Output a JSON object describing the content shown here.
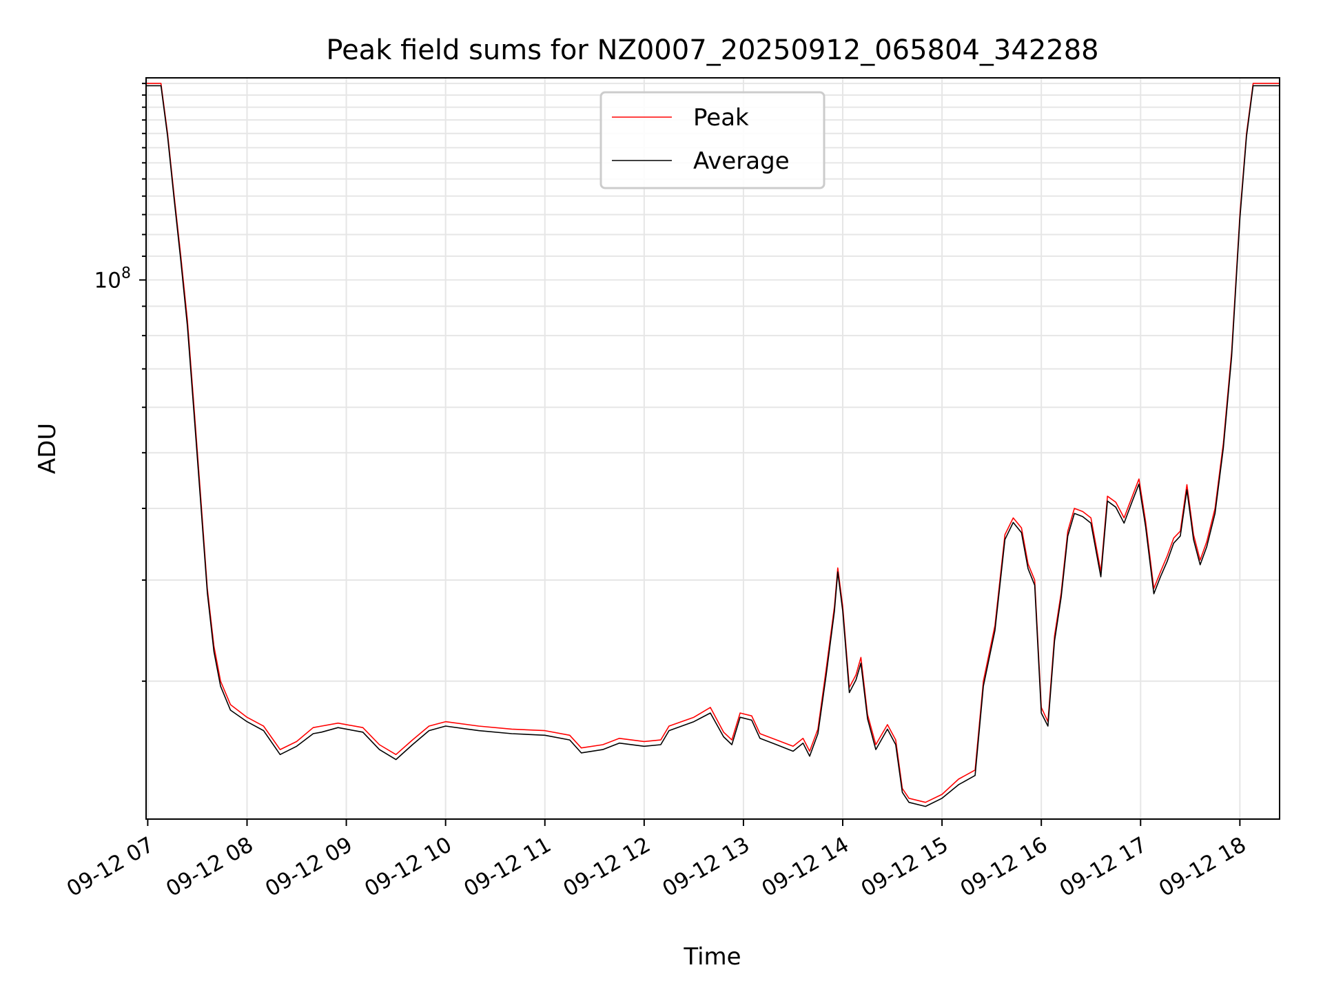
{
  "chart_data": {
    "type": "line",
    "title": "Peak field sums for NZ0007_20250912_065804_342288",
    "xlabel": "Time",
    "ylabel": "ADU",
    "yscale": "log",
    "ylim": [
      11500000,
      225000000
    ],
    "xlim": [
      "09-12 06:59",
      "09-12 18:24"
    ],
    "x_ticks": [
      "09-12 07",
      "09-12 08",
      "09-12 09",
      "09-12 10",
      "09-12 11",
      "09-12 12",
      "09-12 13",
      "09-12 14",
      "09-12 15",
      "09-12 16",
      "09-12 17",
      "09-12 18"
    ],
    "y_tick_labels": [
      {
        "value": 100000000,
        "base": "10",
        "exponent": "8"
      }
    ],
    "grid": true,
    "legend_position": "upper center",
    "colors": {
      "peak": "#ff0000",
      "average": "#000000"
    },
    "series": [
      {
        "name": "Peak",
        "color": "#ff0000",
        "points": [
          [
            "09-12 06:59",
            220000000
          ],
          [
            "09-12 07:08",
            220000000
          ],
          [
            "09-12 07:12",
            180000000
          ],
          [
            "09-12 07:16",
            140000000
          ],
          [
            "09-12 07:20",
            110000000
          ],
          [
            "09-12 07:24",
            85000000
          ],
          [
            "09-12 07:28",
            60000000
          ],
          [
            "09-12 07:32",
            42000000
          ],
          [
            "09-12 07:36",
            29000000
          ],
          [
            "09-12 07:40",
            23000000
          ],
          [
            "09-12 07:44",
            20000000
          ],
          [
            "09-12 07:50",
            18200000
          ],
          [
            "09-12 08:00",
            17300000
          ],
          [
            "09-12 08:10",
            16700000
          ],
          [
            "09-12 08:20",
            15200000
          ],
          [
            "09-12 08:30",
            15700000
          ],
          [
            "09-12 08:40",
            16600000
          ],
          [
            "09-12 08:45",
            16700000
          ],
          [
            "09-12 08:55",
            16900000
          ],
          [
            "09-12 09:10",
            16600000
          ],
          [
            "09-12 09:20",
            15500000
          ],
          [
            "09-12 09:30",
            14900000
          ],
          [
            "09-12 09:40",
            15800000
          ],
          [
            "09-12 09:50",
            16700000
          ],
          [
            "09-12 10:00",
            17000000
          ],
          [
            "09-12 10:20",
            16700000
          ],
          [
            "09-12 10:40",
            16500000
          ],
          [
            "09-12 11:00",
            16400000
          ],
          [
            "09-12 11:15",
            16100000
          ],
          [
            "09-12 11:22",
            15300000
          ],
          [
            "09-12 11:35",
            15500000
          ],
          [
            "09-12 11:45",
            15900000
          ],
          [
            "09-12 12:00",
            15700000
          ],
          [
            "09-12 12:10",
            15800000
          ],
          [
            "09-12 12:15",
            16700000
          ],
          [
            "09-12 12:30",
            17300000
          ],
          [
            "09-12 12:40",
            18000000
          ],
          [
            "09-12 12:48",
            16300000
          ],
          [
            "09-12 12:53",
            15800000
          ],
          [
            "09-12 12:58",
            17600000
          ],
          [
            "09-12 13:05",
            17400000
          ],
          [
            "09-12 13:10",
            16200000
          ],
          [
            "09-12 13:20",
            15800000
          ],
          [
            "09-12 13:30",
            15400000
          ],
          [
            "09-12 13:36",
            15900000
          ],
          [
            "09-12 13:40",
            15100000
          ],
          [
            "09-12 13:45",
            16500000
          ],
          [
            "09-12 13:50",
            21000000
          ],
          [
            "09-12 13:55",
            27000000
          ],
          [
            "09-12 13:57",
            31500000
          ],
          [
            "09-12 14:00",
            27000000
          ],
          [
            "09-12 14:04",
            19500000
          ],
          [
            "09-12 14:08",
            20500000
          ],
          [
            "09-12 14:11",
            22000000
          ],
          [
            "09-12 14:15",
            17500000
          ],
          [
            "09-12 14:20",
            15500000
          ],
          [
            "09-12 14:27",
            16800000
          ],
          [
            "09-12 14:32",
            15800000
          ],
          [
            "09-12 14:36",
            13000000
          ],
          [
            "09-12 14:40",
            12500000
          ],
          [
            "09-12 14:50",
            12300000
          ],
          [
            "09-12 15:00",
            12700000
          ],
          [
            "09-12 15:10",
            13500000
          ],
          [
            "09-12 15:20",
            14000000
          ],
          [
            "09-12 15:25",
            20000000
          ],
          [
            "09-12 15:32",
            25000000
          ],
          [
            "09-12 15:38",
            36000000
          ],
          [
            "09-12 15:43",
            38500000
          ],
          [
            "09-12 15:48",
            37000000
          ],
          [
            "09-12 15:52",
            32000000
          ],
          [
            "09-12 15:56",
            30000000
          ],
          [
            "09-12 16:00",
            18000000
          ],
          [
            "09-12 16:04",
            17000000
          ],
          [
            "09-12 16:08",
            24000000
          ],
          [
            "09-12 16:12",
            28500000
          ],
          [
            "09-12 16:16",
            36500000
          ],
          [
            "09-12 16:20",
            40000000
          ],
          [
            "09-12 16:25",
            39500000
          ],
          [
            "09-12 16:30",
            38500000
          ],
          [
            "09-12 16:36",
            31000000
          ],
          [
            "09-12 16:40",
            42000000
          ],
          [
            "09-12 16:45",
            41000000
          ],
          [
            "09-12 16:50",
            38500000
          ],
          [
            "09-12 16:55",
            42000000
          ],
          [
            "09-12 16:59",
            45000000
          ],
          [
            "09-12 17:03",
            38000000
          ],
          [
            "09-12 17:08",
            29000000
          ],
          [
            "09-12 17:12",
            31000000
          ],
          [
            "09-12 17:16",
            33000000
          ],
          [
            "09-12 17:20",
            35500000
          ],
          [
            "09-12 17:24",
            36500000
          ],
          [
            "09-12 17:28",
            44000000
          ],
          [
            "09-12 17:32",
            36000000
          ],
          [
            "09-12 17:36",
            32500000
          ],
          [
            "09-12 17:40",
            35000000
          ],
          [
            "09-12 17:45",
            40000000
          ],
          [
            "09-12 17:50",
            52000000
          ],
          [
            "09-12 17:55",
            75000000
          ],
          [
            "09-12 18:00",
            130000000
          ],
          [
            "09-12 18:04",
            180000000
          ],
          [
            "09-12 18:08",
            220000000
          ],
          [
            "09-12 18:24",
            220000000
          ]
        ]
      },
      {
        "name": "Average",
        "color": "#000000",
        "points": [
          [
            "09-12 06:59",
            218000000
          ],
          [
            "09-12 07:08",
            218000000
          ],
          [
            "09-12 07:12",
            178000000
          ],
          [
            "09-12 07:16",
            138000000
          ],
          [
            "09-12 07:20",
            108000000
          ],
          [
            "09-12 07:24",
            83000000
          ],
          [
            "09-12 07:28",
            58500000
          ],
          [
            "09-12 07:32",
            41000000
          ],
          [
            "09-12 07:36",
            28500000
          ],
          [
            "09-12 07:40",
            22500000
          ],
          [
            "09-12 07:44",
            19600000
          ],
          [
            "09-12 07:50",
            17800000
          ],
          [
            "09-12 08:00",
            17000000
          ],
          [
            "09-12 08:10",
            16400000
          ],
          [
            "09-12 08:20",
            14900000
          ],
          [
            "09-12 08:30",
            15400000
          ],
          [
            "09-12 08:40",
            16200000
          ],
          [
            "09-12 08:45",
            16300000
          ],
          [
            "09-12 08:55",
            16600000
          ],
          [
            "09-12 09:10",
            16300000
          ],
          [
            "09-12 09:20",
            15200000
          ],
          [
            "09-12 09:30",
            14600000
          ],
          [
            "09-12 09:40",
            15500000
          ],
          [
            "09-12 09:50",
            16400000
          ],
          [
            "09-12 10:00",
            16700000
          ],
          [
            "09-12 10:20",
            16400000
          ],
          [
            "09-12 10:40",
            16200000
          ],
          [
            "09-12 11:00",
            16100000
          ],
          [
            "09-12 11:15",
            15800000
          ],
          [
            "09-12 11:22",
            15000000
          ],
          [
            "09-12 11:35",
            15200000
          ],
          [
            "09-12 11:45",
            15600000
          ],
          [
            "09-12 12:00",
            15400000
          ],
          [
            "09-12 12:10",
            15500000
          ],
          [
            "09-12 12:15",
            16400000
          ],
          [
            "09-12 12:30",
            17000000
          ],
          [
            "09-12 12:40",
            17600000
          ],
          [
            "09-12 12:48",
            16000000
          ],
          [
            "09-12 12:53",
            15500000
          ],
          [
            "09-12 12:58",
            17300000
          ],
          [
            "09-12 13:05",
            17100000
          ],
          [
            "09-12 13:10",
            15900000
          ],
          [
            "09-12 13:20",
            15500000
          ],
          [
            "09-12 13:30",
            15100000
          ],
          [
            "09-12 13:36",
            15600000
          ],
          [
            "09-12 13:40",
            14800000
          ],
          [
            "09-12 13:45",
            16200000
          ],
          [
            "09-12 13:50",
            20500000
          ],
          [
            "09-12 13:55",
            26500000
          ],
          [
            "09-12 13:57",
            31000000
          ],
          [
            "09-12 14:00",
            26500000
          ],
          [
            "09-12 14:04",
            19100000
          ],
          [
            "09-12 14:08",
            20100000
          ],
          [
            "09-12 14:11",
            21500000
          ],
          [
            "09-12 14:15",
            17200000
          ],
          [
            "09-12 14:20",
            15200000
          ],
          [
            "09-12 14:27",
            16500000
          ],
          [
            "09-12 14:32",
            15500000
          ],
          [
            "09-12 14:36",
            12800000
          ],
          [
            "09-12 14:40",
            12300000
          ],
          [
            "09-12 14:50",
            12100000
          ],
          [
            "09-12 15:00",
            12500000
          ],
          [
            "09-12 15:10",
            13200000
          ],
          [
            "09-12 15:20",
            13700000
          ],
          [
            "09-12 15:25",
            19600000
          ],
          [
            "09-12 15:32",
            24500000
          ],
          [
            "09-12 15:38",
            35300000
          ],
          [
            "09-12 15:43",
            37800000
          ],
          [
            "09-12 15:48",
            36300000
          ],
          [
            "09-12 15:52",
            31400000
          ],
          [
            "09-12 15:56",
            29400000
          ],
          [
            "09-12 16:00",
            17600000
          ],
          [
            "09-12 16:04",
            16700000
          ],
          [
            "09-12 16:08",
            23500000
          ],
          [
            "09-12 16:12",
            28000000
          ],
          [
            "09-12 16:16",
            35800000
          ],
          [
            "09-12 16:20",
            39200000
          ],
          [
            "09-12 16:25",
            38700000
          ],
          [
            "09-12 16:30",
            37700000
          ],
          [
            "09-12 16:36",
            30400000
          ],
          [
            "09-12 16:40",
            41200000
          ],
          [
            "09-12 16:45",
            40200000
          ],
          [
            "09-12 16:50",
            37700000
          ],
          [
            "09-12 16:55",
            41200000
          ],
          [
            "09-12 16:59",
            44100000
          ],
          [
            "09-12 17:03",
            37200000
          ],
          [
            "09-12 17:08",
            28400000
          ],
          [
            "09-12 17:12",
            30400000
          ],
          [
            "09-12 17:16",
            32300000
          ],
          [
            "09-12 17:20",
            34800000
          ],
          [
            "09-12 17:24",
            35800000
          ],
          [
            "09-12 17:28",
            43100000
          ],
          [
            "09-12 17:32",
            35300000
          ],
          [
            "09-12 17:36",
            31900000
          ],
          [
            "09-12 17:40",
            34300000
          ],
          [
            "09-12 17:45",
            39200000
          ],
          [
            "09-12 17:50",
            51000000
          ],
          [
            "09-12 17:55",
            73500000
          ],
          [
            "09-12 18:00",
            128000000
          ],
          [
            "09-12 18:04",
            178000000
          ],
          [
            "09-12 18:08",
            218000000
          ],
          [
            "09-12 18:24",
            218000000
          ]
        ]
      }
    ]
  }
}
